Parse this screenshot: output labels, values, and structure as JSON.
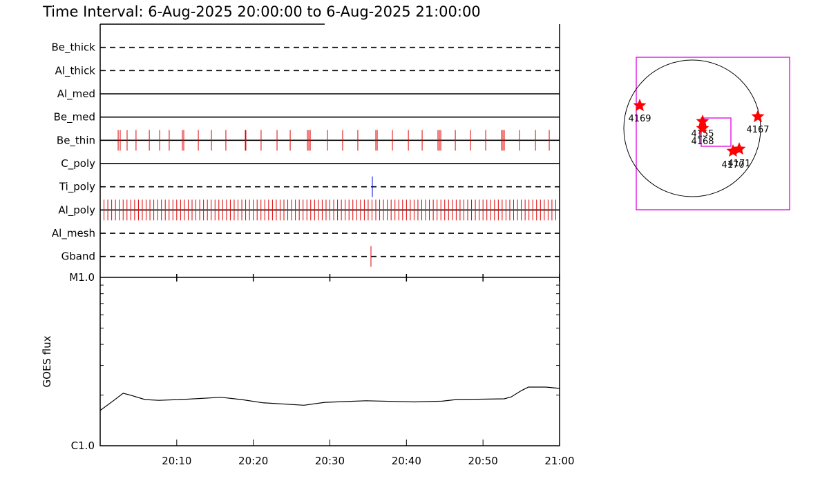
{
  "title": "Time Interval:  6-Aug-2025 20:00:00 to  6-Aug-2025 21:00:00",
  "chart_data": [
    {
      "type": "event-timeline",
      "xlim": [
        "20:00",
        "21:00"
      ],
      "rows": [
        {
          "name": "Be_thick",
          "style": "dashed",
          "color": "#e00000",
          "events": []
        },
        {
          "name": "Al_thick",
          "style": "dashed",
          "color": "#e00000",
          "events": []
        },
        {
          "name": "Al_med",
          "style": "solid",
          "color": "#e00000",
          "events": []
        },
        {
          "name": "Be_med",
          "style": "solid",
          "color": "#e00000",
          "events": []
        },
        {
          "name": "Be_thin",
          "style": "solid",
          "color": "#e00000",
          "events": [
            "20:02:21",
            "20:02:37",
            "20:03:31",
            "20:04:41",
            "20:06:25",
            "20:07:46",
            "20:09:01",
            "20:10:44",
            "20:10:55",
            "20:12:49",
            "20:14:32",
            "20:16:25",
            "20:18:57",
            "20:19:02",
            "20:21:01",
            "20:23:06",
            "20:24:49",
            "20:27:04",
            "20:27:15",
            "20:27:26",
            "20:29:41",
            "20:31:40",
            "20:33:39",
            "20:36:00",
            "20:36:11",
            "20:38:10",
            "20:40:15",
            "20:42:03",
            "20:44:07",
            "20:44:18",
            "20:44:29",
            "20:46:23",
            "20:48:22",
            "20:50:21",
            "20:52:25",
            "20:52:36",
            "20:52:47",
            "20:54:46",
            "20:56:51",
            "20:58:39"
          ]
        },
        {
          "name": "C_poly",
          "style": "solid",
          "color": "#e00000",
          "events": []
        },
        {
          "name": "Ti_poly",
          "style": "dashed",
          "color": "#0000e0",
          "events": [
            "20:35:33"
          ]
        },
        {
          "name": "Al_poly",
          "style": "solid",
          "color": "#e00000",
          "events": [
            "20:00:30",
            "20:01:00",
            "20:01:30",
            "20:02:00",
            "20:02:30",
            "20:03:00",
            "20:03:30",
            "20:04:00",
            "20:04:30",
            "20:05:00",
            "20:05:30",
            "20:06:00",
            "20:06:30",
            "20:07:00",
            "20:07:30",
            "20:08:00",
            "20:08:30",
            "20:09:00",
            "20:09:30",
            "20:10:00",
            "20:10:30",
            "20:11:00",
            "20:11:30",
            "20:12:00",
            "20:12:30",
            "20:13:00",
            "20:13:30",
            "20:14:00",
            "20:14:30",
            "20:15:00",
            "20:15:30",
            "20:16:00",
            "20:16:30",
            "20:17:00",
            "20:17:30",
            "20:18:00",
            "20:18:30",
            "20:19:00",
            "20:19:30",
            "20:20:00",
            "20:20:30",
            "20:21:00",
            "20:21:30",
            "20:22:00",
            "20:22:30",
            "20:23:00",
            "20:23:30",
            "20:24:00",
            "20:24:30",
            "20:25:00",
            "20:25:30",
            "20:26:00",
            "20:26:30",
            "20:27:00",
            "20:27:30",
            "20:28:00",
            "20:28:30",
            "20:29:00",
            "20:29:30",
            "20:30:00",
            "20:30:30",
            "20:31:00",
            "20:31:30",
            "20:32:00",
            "20:32:30",
            "20:33:00",
            "20:33:30",
            "20:34:00",
            "20:34:30",
            "20:35:00",
            "20:35:30",
            "20:36:00",
            "20:36:30",
            "20:37:00",
            "20:37:30",
            "20:38:00",
            "20:38:30",
            "20:39:00",
            "20:39:30",
            "20:40:00",
            "20:40:30",
            "20:41:00",
            "20:41:30",
            "20:42:00",
            "20:42:30",
            "20:43:00",
            "20:43:30",
            "20:44:00",
            "20:44:30",
            "20:45:00",
            "20:45:30",
            "20:46:00",
            "20:46:30",
            "20:47:00",
            "20:47:30",
            "20:48:00",
            "20:48:30",
            "20:49:00",
            "20:49:30",
            "20:50:00",
            "20:50:30",
            "20:51:00",
            "20:51:30",
            "20:52:00",
            "20:52:30",
            "20:53:00",
            "20:53:30",
            "20:54:00",
            "20:54:30",
            "20:55:00",
            "20:55:30",
            "20:56:00",
            "20:56:30",
            "20:57:00",
            "20:57:30",
            "20:58:00",
            "20:58:30",
            "20:59:00",
            "20:59:30"
          ]
        },
        {
          "name": "Al_mesh",
          "style": "dashed",
          "color": "#e00000",
          "events": []
        },
        {
          "name": "Gband",
          "style": "dashed",
          "color": "#e00000",
          "events": [
            "20:35:22"
          ]
        }
      ]
    },
    {
      "type": "line",
      "ylabel": "GOES flux",
      "log_scale": true,
      "xlim": [
        "20:00",
        "21:00"
      ],
      "xticks": [
        "20:10",
        "20:20",
        "20:30",
        "20:40",
        "20:50",
        "21:00"
      ],
      "ylim": [
        1e-06,
        1e-05
      ],
      "yticks": [
        {
          "value": 1e-06,
          "label": "C1.0"
        },
        {
          "value": 1e-05,
          "label": "M1.0"
        }
      ],
      "yminorticks": [
        2e-06,
        3e-06,
        4e-06,
        5e-06,
        6e-06,
        7e-06,
        8e-06,
        9e-06
      ],
      "color": "#000000",
      "x": [
        "20:00:00",
        "20:01:48",
        "20:03:00",
        "20:04:04",
        "20:05:52",
        "20:07:40",
        "20:10:23",
        "20:15:48",
        "20:18:30",
        "20:21:12",
        "20:26:37",
        "20:29:20",
        "20:34:44",
        "20:41:03",
        "20:44:40",
        "20:46:28",
        "20:52:47",
        "20:53:41",
        "20:55:02",
        "20:55:56",
        "20:58:12",
        "21:00:00"
      ],
      "values": [
        1.62e-06,
        1.86e-06,
        2.05e-06,
        1.99e-06,
        1.88e-06,
        1.86e-06,
        1.88e-06,
        1.94e-06,
        1.88e-06,
        1.8e-06,
        1.74e-06,
        1.81e-06,
        1.85e-06,
        1.82e-06,
        1.84e-06,
        1.88e-06,
        1.9e-06,
        1.95e-06,
        2.13e-06,
        2.23e-06,
        2.23e-06,
        2.19e-06
      ]
    }
  ],
  "map": {
    "regions": [
      "4169",
      "4155",
      "4168",
      "4167",
      "4170",
      "4171"
    ]
  }
}
